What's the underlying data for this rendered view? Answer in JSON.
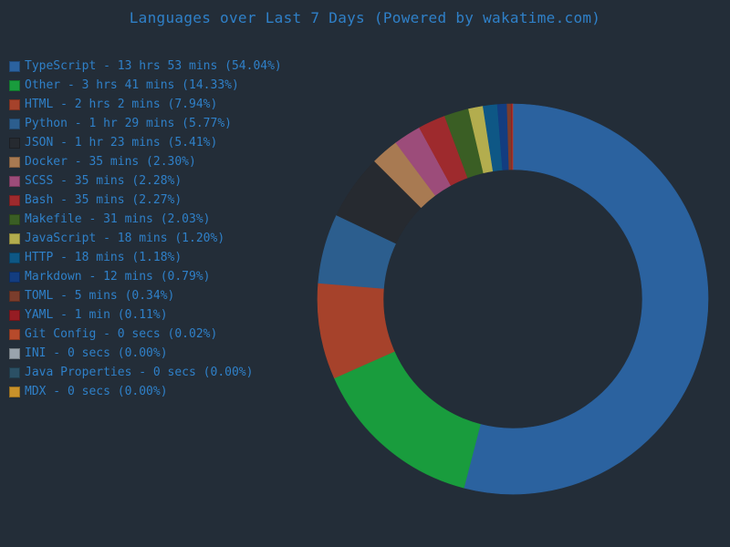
{
  "title": "Languages over Last 7 Days (Powered by wakatime.com)",
  "chart_data": {
    "type": "pie",
    "title": "Languages over Last 7 Days (Powered by wakatime.com)",
    "legend_position": "left",
    "style": "donut",
    "slices": [
      {
        "name": "TypeScript",
        "label": "TypeScript - 13 hrs 53 mins (54.04%)",
        "value": 54.04,
        "color": "#2b629f"
      },
      {
        "name": "Other",
        "label": "Other - 3 hrs 41 mins (14.33%)",
        "value": 14.33,
        "color": "#199c3d"
      },
      {
        "name": "HTML",
        "label": "HTML - 2 hrs 2 mins (7.94%)",
        "value": 7.94,
        "color": "#a6422b"
      },
      {
        "name": "Python",
        "label": "Python - 1 hr 29 mins (5.77%)",
        "value": 5.77,
        "color": "#2c5e8e"
      },
      {
        "name": "JSON",
        "label": "JSON - 1 hr 23 mins (5.41%)",
        "value": 5.41,
        "color": "#262a30"
      },
      {
        "name": "Docker",
        "label": "Docker - 35 mins (2.30%)",
        "value": 2.3,
        "color": "#a87a52"
      },
      {
        "name": "SCSS",
        "label": "SCSS - 35 mins (2.28%)",
        "value": 2.28,
        "color": "#9c4c7a"
      },
      {
        "name": "Bash",
        "label": "Bash - 35 mins (2.27%)",
        "value": 2.27,
        "color": "#9e2a2d"
      },
      {
        "name": "Makefile",
        "label": "Makefile - 31 mins (2.03%)",
        "value": 2.03,
        "color": "#3a5e24"
      },
      {
        "name": "JavaScript",
        "label": "JavaScript - 18 mins (1.20%)",
        "value": 1.2,
        "color": "#b3ad4e"
      },
      {
        "name": "HTTP",
        "label": "HTTP - 18 mins (1.18%)",
        "value": 1.18,
        "color": "#0e5785"
      },
      {
        "name": "Markdown",
        "label": "Markdown - 12 mins (0.79%)",
        "value": 0.79,
        "color": "#133d80"
      },
      {
        "name": "TOML",
        "label": "TOML - 5 mins (0.34%)",
        "value": 0.34,
        "color": "#7b3d2c"
      },
      {
        "name": "YAML",
        "label": "YAML - 1 min (0.11%)",
        "value": 0.11,
        "color": "#961c23"
      },
      {
        "name": "Git Config",
        "label": "Git Config - 0 secs (0.02%)",
        "value": 0.02,
        "color": "#b74a2b"
      },
      {
        "name": "INI",
        "label": "INI - 0 secs (0.00%)",
        "value": 0.0,
        "color": "#9aa4ad"
      },
      {
        "name": "Java Properties",
        "label": "Java Properties - 0 secs (0.00%)",
        "value": 0.0,
        "color": "#2b5065"
      },
      {
        "name": "MDX",
        "label": "MDX - 0 secs (0.00%)",
        "value": 0.0,
        "color": "#c9922a"
      }
    ]
  }
}
